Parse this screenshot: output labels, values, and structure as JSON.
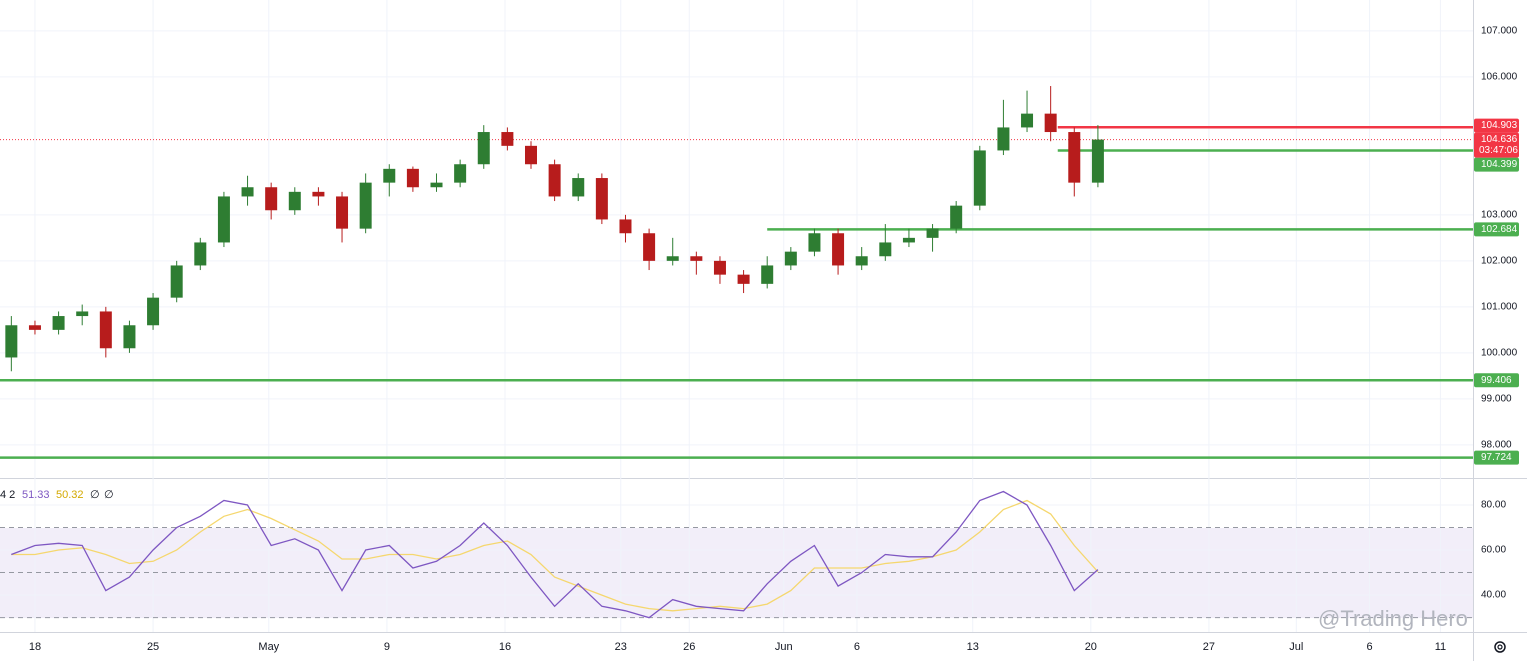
{
  "chart_data": {
    "type": "candlestick",
    "x": [
      -1,
      0,
      1,
      2,
      3,
      4,
      5,
      6,
      7,
      8,
      9,
      10,
      11,
      12,
      13,
      14,
      15,
      16,
      17,
      18,
      19,
      20,
      21,
      22,
      23,
      24,
      25,
      26,
      27,
      28,
      29,
      30,
      31,
      32,
      33,
      34,
      35,
      36,
      37,
      38,
      39,
      40,
      41,
      42,
      43,
      44,
      45
    ],
    "open": [
      99.9,
      100.6,
      100.5,
      100.8,
      100.9,
      100.1,
      100.6,
      101.2,
      101.9,
      102.4,
      103.4,
      103.6,
      103.1,
      103.5,
      103.4,
      102.7,
      103.7,
      104.0,
      103.6,
      103.7,
      104.1,
      104.8,
      104.5,
      104.1,
      103.4,
      103.8,
      102.9,
      102.6,
      102.0,
      102.1,
      102.0,
      101.7,
      101.5,
      101.9,
      102.2,
      102.6,
      101.9,
      102.1,
      102.4,
      102.5,
      102.7,
      103.2,
      104.4,
      104.9,
      105.2,
      104.8,
      103.7
    ],
    "high": [
      100.8,
      100.7,
      100.9,
      101.05,
      101.0,
      100.7,
      101.3,
      102.0,
      102.5,
      103.5,
      103.85,
      103.7,
      103.6,
      103.6,
      103.5,
      103.9,
      104.1,
      104.05,
      103.9,
      104.2,
      104.95,
      104.9,
      104.6,
      104.2,
      103.9,
      103.9,
      103.0,
      102.7,
      102.5,
      102.2,
      102.1,
      101.8,
      102.1,
      102.3,
      102.7,
      102.7,
      102.3,
      102.8,
      102.7,
      102.8,
      103.3,
      104.5,
      105.5,
      105.7,
      105.8,
      104.9,
      104.95
    ],
    "low": [
      99.6,
      100.4,
      100.4,
      100.6,
      99.9,
      100.0,
      100.5,
      101.1,
      101.8,
      102.3,
      103.2,
      102.9,
      103.0,
      103.2,
      102.4,
      102.6,
      103.4,
      103.5,
      103.5,
      103.6,
      104.0,
      104.4,
      104.0,
      103.3,
      103.3,
      102.8,
      102.4,
      101.8,
      101.9,
      101.7,
      101.5,
      101.3,
      101.4,
      101.8,
      102.1,
      101.7,
      101.8,
      102.0,
      102.3,
      102.2,
      102.6,
      103.1,
      104.3,
      104.8,
      104.6,
      103.4,
      103.6
    ],
    "close": [
      100.6,
      100.5,
      100.8,
      100.9,
      100.1,
      100.6,
      101.2,
      101.9,
      102.4,
      103.4,
      103.6,
      103.1,
      103.5,
      103.4,
      102.7,
      103.7,
      104.0,
      103.6,
      103.7,
      104.1,
      104.8,
      104.5,
      104.1,
      103.4,
      103.8,
      102.9,
      102.6,
      102.0,
      102.1,
      102.0,
      101.7,
      101.5,
      101.9,
      102.2,
      102.6,
      101.9,
      102.1,
      102.4,
      102.5,
      102.7,
      103.2,
      104.4,
      104.9,
      105.2,
      104.8,
      103.7,
      104.636
    ],
    "up_color": "#2e7d32",
    "down_color": "#b71c1c",
    "xlim": [
      -1.48,
      60.88
    ],
    "xticks": [
      {
        "value": 0,
        "label": "18"
      },
      {
        "value": 5,
        "label": "25"
      },
      {
        "value": 9.9,
        "label": "May"
      },
      {
        "value": 14.9,
        "label": "9"
      },
      {
        "value": 19.9,
        "label": "16"
      },
      {
        "value": 24.8,
        "label": "23"
      },
      {
        "value": 27.7,
        "label": "26"
      },
      {
        "value": 31.7,
        "label": "Jun"
      },
      {
        "value": 34.8,
        "label": "6"
      },
      {
        "value": 39.7,
        "label": "13"
      },
      {
        "value": 44.7,
        "label": "20"
      },
      {
        "value": 49.7,
        "label": "27"
      },
      {
        "value": 53.4,
        "label": "Jul"
      },
      {
        "value": 56.5,
        "label": "6"
      },
      {
        "value": 59.5,
        "label": "11"
      }
    ],
    "ylim": [
      97.28,
      107.67
    ],
    "yticks": [
      {
        "value": 98,
        "label": "98.000"
      },
      {
        "value": 99,
        "label": "99.000"
      },
      {
        "value": 100,
        "label": "100.000"
      },
      {
        "value": 101,
        "label": "101.000"
      },
      {
        "value": 102,
        "label": "102.000"
      },
      {
        "value": 103,
        "label": "103.000"
      },
      {
        "value": 106,
        "label": "106.000"
      },
      {
        "value": 107,
        "label": "107.000"
      }
    ],
    "grid": true,
    "countdown": "03:47:06",
    "levels": [
      {
        "value": 104.903,
        "color": "#f23645",
        "from": 43.3
      },
      {
        "value": 104.399,
        "color": "#4caf50",
        "from": 43.3
      },
      {
        "value": 102.684,
        "color": "#4caf50",
        "from": 31.0
      },
      {
        "value": 99.406,
        "color": "#4caf50",
        "from": -1.48
      },
      {
        "value": 97.724,
        "color": "#4caf50",
        "from": -1.48
      }
    ],
    "rsi": {
      "legend_label": "4 2",
      "legend_extra": [
        "∅",
        "∅"
      ],
      "color": "#7e57c2",
      "ma_color": "#f5d76e",
      "values": [
        58,
        62,
        63,
        62,
        42,
        48,
        60,
        70,
        75,
        82,
        80,
        62,
        65,
        60,
        42,
        60,
        62,
        52,
        55,
        62,
        72,
        62,
        48,
        35,
        45,
        35,
        33,
        30,
        38,
        35,
        34,
        33,
        45,
        55,
        62,
        44,
        50,
        58,
        57,
        57,
        68,
        82,
        86,
        80,
        62,
        42,
        51.33
      ],
      "ma_values": [
        58,
        58,
        60,
        61,
        58,
        54,
        55,
        60,
        68,
        75,
        78,
        74,
        69,
        64,
        56,
        56,
        58,
        58,
        56,
        58,
        62,
        64,
        58,
        48,
        44,
        40,
        36,
        34,
        33,
        34,
        35,
        34,
        36,
        42,
        52,
        52,
        52,
        54,
        55,
        57,
        60,
        68,
        78,
        82,
        76,
        62,
        50.32
      ],
      "ylim": [
        23.6,
        91.1
      ],
      "yticks": [
        {
          "value": 40,
          "label": "40.00"
        },
        {
          "value": 60,
          "label": "60.00"
        },
        {
          "value": 80,
          "label": "80.00"
        }
      ],
      "bands": [
        30,
        50,
        70
      ]
    },
    "watermark": "@Trading Hero"
  }
}
